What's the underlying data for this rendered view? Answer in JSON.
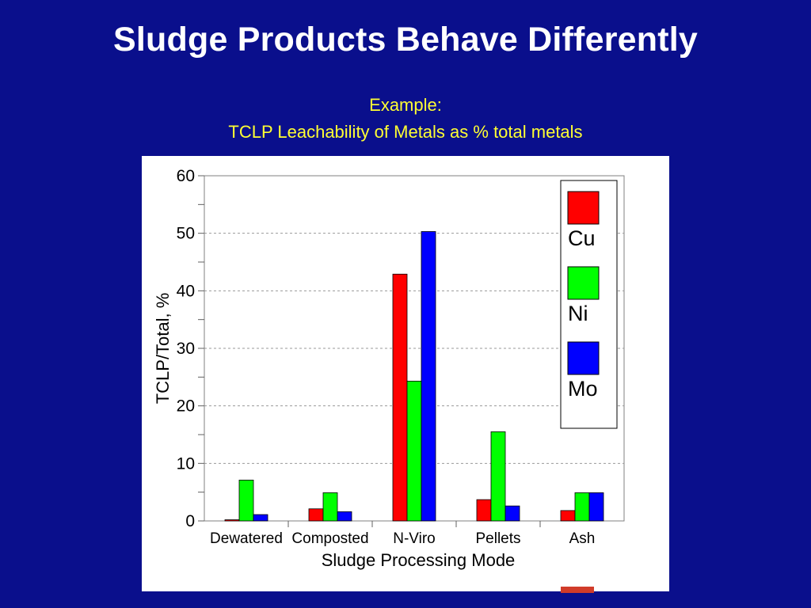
{
  "slide": {
    "title": "Sludge Products Behave Differently",
    "subtitle_line1": "Example:",
    "subtitle_line2": "TCLP Leachability of Metals as % total metals"
  },
  "colors": {
    "background": "#0a0f8c",
    "title": "#ffffff",
    "subtitle": "#ffff33"
  },
  "chart_data": {
    "type": "bar",
    "xlabel": "Sludge Processing Mode",
    "ylabel": "TCLP/Total, %",
    "ylim": [
      0,
      60
    ],
    "yticks": [
      0,
      10,
      20,
      30,
      40,
      50,
      60
    ],
    "grid": true,
    "legend_position": "top-right",
    "categories": [
      "Dewatered",
      "Composted",
      "N-Viro",
      "Pellets",
      "Ash"
    ],
    "series": [
      {
        "name": "Cu",
        "color": "#ff0000",
        "values": [
          0.2,
          2.1,
          42.9,
          3.7,
          1.8
        ]
      },
      {
        "name": "Ni",
        "color": "#00ff00",
        "values": [
          7.1,
          4.9,
          24.3,
          15.5,
          4.9
        ]
      },
      {
        "name": "Mo",
        "color": "#0000ff",
        "values": [
          1.1,
          1.6,
          50.3,
          2.6,
          4.9
        ]
      }
    ]
  }
}
